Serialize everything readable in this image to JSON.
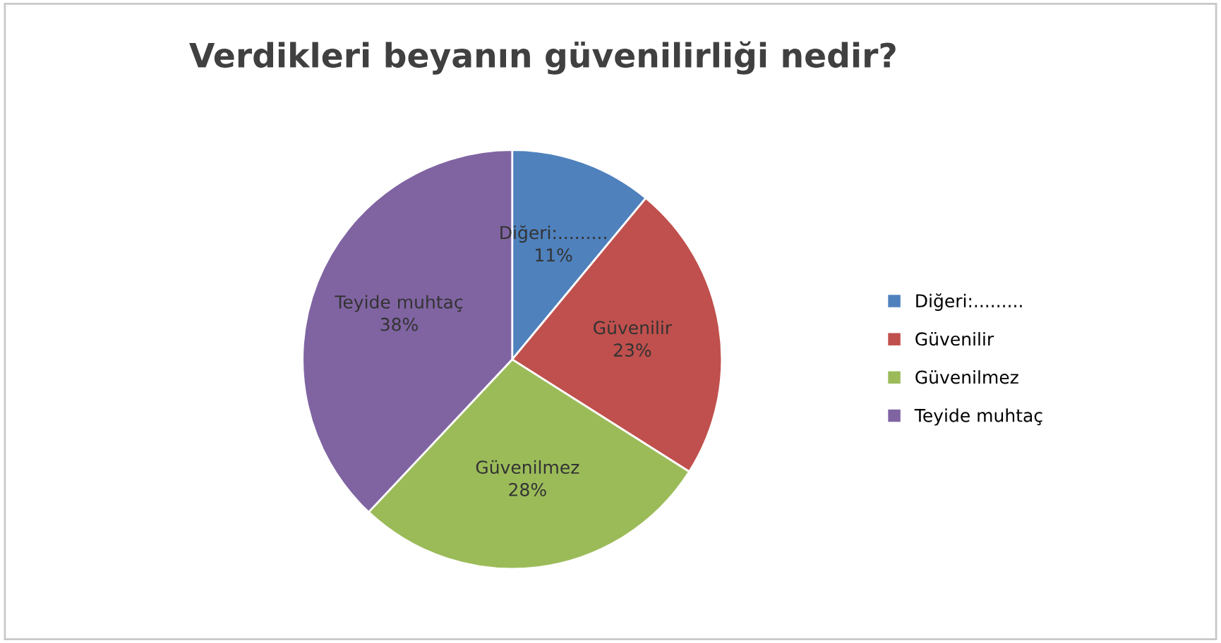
{
  "chart_data": {
    "type": "pie",
    "title": "Verdikleri beyanın güvenilirliği nedir?",
    "categories": [
      "Diğeri:.........",
      "Güvenilir",
      "Güvenilmez",
      "Teyide muhtaç"
    ],
    "values": [
      11,
      23,
      28,
      38
    ],
    "colors": [
      "#4f81bd",
      "#c0504d",
      "#9bbb59",
      "#8064a2"
    ],
    "value_labels": [
      "11%",
      "23%",
      "28%",
      "38%"
    ],
    "legend": "right"
  }
}
